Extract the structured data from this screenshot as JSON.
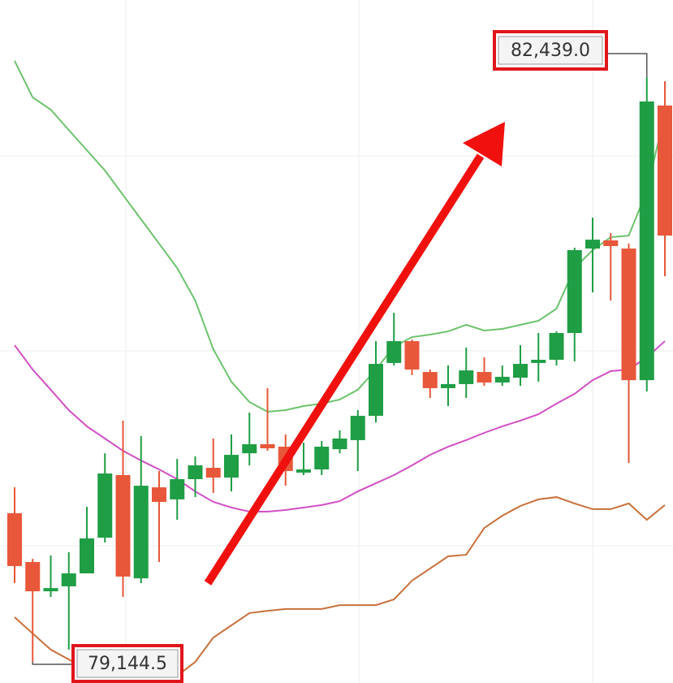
{
  "chart_data": {
    "type": "candlestick",
    "ylim": [
      79025,
      82875
    ],
    "up_color": "#1f9e45",
    "down_color": "#e8573a",
    "open": [
      79982,
      79707,
      79542,
      79570,
      79643,
      79844,
      80197,
      79615,
      80128,
      80060,
      80174,
      80238,
      80183,
      80320,
      80371,
      80357,
      80211,
      80229,
      80343,
      80394,
      80531,
      80829,
      80952,
      80778,
      80687,
      80710,
      80778,
      80719,
      80746,
      80829,
      80847,
      80998,
      81474,
      81520,
      81474,
      80732,
      82280
    ],
    "high": [
      80128,
      79725,
      79744,
      79762,
      80018,
      80320,
      80504,
      80417,
      80220,
      80288,
      80302,
      80403,
      80426,
      80549,
      80687,
      80426,
      80380,
      80389,
      80449,
      80563,
      80952,
      81112,
      80961,
      80792,
      80815,
      80916,
      80861,
      80815,
      80929,
      80998,
      81007,
      81479,
      81648,
      81561,
      81502,
      82439.0,
      82417
    ],
    "low": [
      79588,
      79144.5,
      79510,
      79213,
      79643,
      79817,
      79510,
      79588,
      79707,
      79945,
      80073,
      80096,
      80105,
      80252,
      80334,
      80137,
      80197,
      80197,
      80320,
      80220,
      80494,
      80815,
      80760,
      80632,
      80586,
      80632,
      80700,
      80700,
      80700,
      80723,
      80815,
      80838,
      81227,
      81181,
      80265,
      80668,
      81318
    ],
    "close": [
      79684,
      79542,
      79560,
      79643,
      79840,
      80206,
      79625,
      80137,
      80046,
      80174,
      80252,
      80183,
      80311,
      80371,
      80348,
      80220,
      80229,
      80357,
      80403,
      80531,
      80824,
      80952,
      80792,
      80687,
      80710,
      80787,
      80719,
      80751,
      80824,
      80847,
      80998,
      81465,
      81524,
      81488,
      80732,
      82303,
      81547
    ],
    "bands": [
      {
        "color": "#6cc36c",
        "values": [
          82532,
          82326,
          82257,
          82142,
          82028,
          81914,
          81776,
          81639,
          81502,
          81364,
          81181,
          80906,
          80723,
          80609,
          80554,
          80563,
          80586,
          80600,
          80623,
          80678,
          80792,
          80920,
          80975,
          80989,
          81007,
          81044,
          81012,
          81021,
          81044,
          81067,
          81135,
          81364,
          81465,
          81538,
          81547,
          81799,
          82234
        ]
      },
      {
        "color": "#d24fc6",
        "values": [
          80929,
          80792,
          80678,
          80563,
          80472,
          80403,
          80334,
          80279,
          80229,
          80174,
          80105,
          80046,
          80014,
          79991,
          79991,
          80000,
          80014,
          80028,
          80050,
          80105,
          80151,
          80197,
          80252,
          80311,
          80357,
          80394,
          80435,
          80472,
          80504,
          80540,
          80600,
          80655,
          80732,
          80783,
          80792,
          80861,
          80952
        ]
      },
      {
        "color": "#c8703a",
        "values": [
          79396,
          79304,
          79213,
          79158,
          79098,
          79052,
          79039,
          79039,
          79039,
          79066,
          79144,
          79281,
          79350,
          79419,
          79432,
          79442,
          79442,
          79442,
          79464,
          79464,
          79464,
          79496,
          79602,
          79670,
          79739,
          79748,
          79899,
          79968,
          80023,
          80060,
          80073,
          80037,
          80005,
          80005,
          80037,
          79945,
          80028
        ]
      }
    ],
    "high_label": "82,439.0",
    "low_label": "79,144.5"
  }
}
